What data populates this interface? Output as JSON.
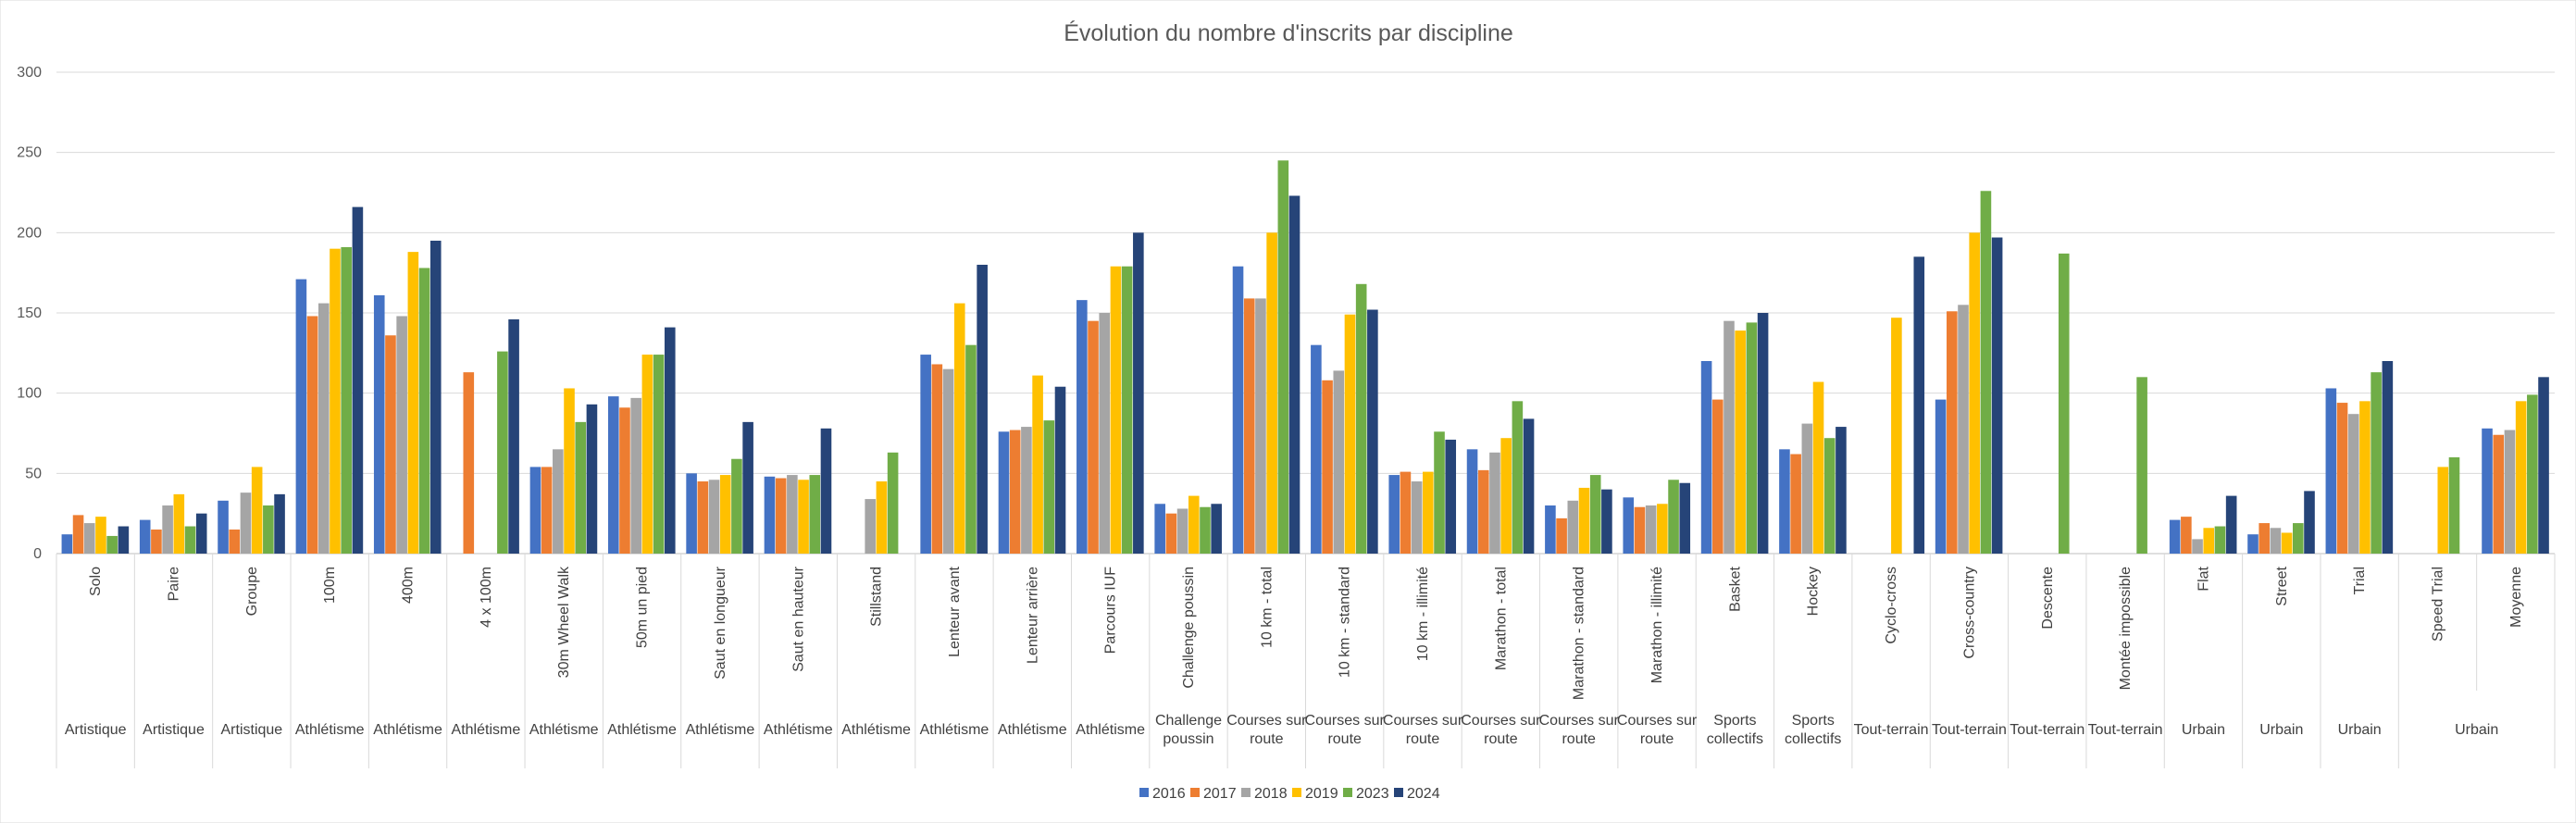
{
  "chart_data": {
    "type": "bar",
    "title": "Évolution du nombre d'inscrits par discipline",
    "xlabel": "",
    "ylabel": "",
    "ylim": [
      0,
      300
    ],
    "yticks": [
      "0",
      "50",
      "100",
      "150",
      "200",
      "250",
      "300"
    ],
    "grid": true,
    "legend_position": "bottom",
    "categories": [
      "Solo",
      "Paire",
      "Groupe",
      "100m",
      "400m",
      "4 x 100m",
      "30m Wheel Walk",
      "50m un pied",
      "Saut en longueur",
      "Saut en hauteur",
      "Stillstand",
      "Lenteur avant",
      "Lenteur arrière",
      "Parcours IUF",
      "Challenge poussin",
      "10 km - total",
      "10 km - standard",
      "10 km - illimité",
      "Marathon - total",
      "Marathon - standard",
      "Marathon - illimité",
      "Basket",
      "Hockey",
      "Cyclo-cross",
      "Cross-country",
      "Descente",
      "Montée impossible",
      "Flat",
      "Street",
      "Trial",
      "Speed Trial",
      "Moyenne"
    ],
    "groups": [
      {
        "label": "Artistique",
        "span": 1
      },
      {
        "label": "Artistique",
        "span": 1
      },
      {
        "label": "Artistique",
        "span": 1
      },
      {
        "label": "Athlétisme",
        "span": 1
      },
      {
        "label": "Athlétisme",
        "span": 1
      },
      {
        "label": "Athlétisme",
        "span": 1
      },
      {
        "label": "Athlétisme",
        "span": 1
      },
      {
        "label": "Athlétisme",
        "span": 1
      },
      {
        "label": "Athlétisme",
        "span": 1
      },
      {
        "label": "Athlétisme",
        "span": 1
      },
      {
        "label": "Athlétisme",
        "span": 1
      },
      {
        "label": "Athlétisme",
        "span": 1
      },
      {
        "label": "Athlétisme",
        "span": 1
      },
      {
        "label": "Athlétisme",
        "span": 1
      },
      {
        "label": "Challenge poussin",
        "span": 1
      },
      {
        "label": "Courses sur route",
        "span": 1
      },
      {
        "label": "Courses sur route",
        "span": 1
      },
      {
        "label": "Courses sur route",
        "span": 1
      },
      {
        "label": "Courses sur route",
        "span": 1
      },
      {
        "label": "Courses sur route",
        "span": 1
      },
      {
        "label": "Courses sur route",
        "span": 1
      },
      {
        "label": "Sports collectifs",
        "span": 1
      },
      {
        "label": "Sports collectifs",
        "span": 1
      },
      {
        "label": "Tout-terrain",
        "span": 1
      },
      {
        "label": "Tout-terrain",
        "span": 1
      },
      {
        "label": "Tout-terrain",
        "span": 1
      },
      {
        "label": "Tout-terrain",
        "span": 1
      },
      {
        "label": "Urbain",
        "span": 1
      },
      {
        "label": "Urbain",
        "span": 1
      },
      {
        "label": "Urbain",
        "span": 1
      },
      {
        "label": "Urbain",
        "span": 2
      }
    ],
    "series": [
      {
        "name": "2016",
        "color": "#4472c4",
        "values": [
          12,
          21,
          33,
          171,
          161,
          null,
          54,
          98,
          50,
          48,
          null,
          124,
          76,
          158,
          31,
          179,
          130,
          49,
          65,
          30,
          35,
          120,
          65,
          null,
          96,
          null,
          null,
          21,
          12,
          103,
          null,
          78
        ]
      },
      {
        "name": "2017",
        "color": "#ed7d31",
        "values": [
          24,
          15,
          15,
          148,
          136,
          113,
          54,
          91,
          45,
          47,
          null,
          118,
          77,
          145,
          25,
          159,
          108,
          51,
          52,
          22,
          29,
          96,
          62,
          null,
          151,
          null,
          null,
          23,
          19,
          94,
          null,
          74
        ]
      },
      {
        "name": "2018",
        "color": "#a5a5a5",
        "values": [
          19,
          30,
          38,
          156,
          148,
          null,
          65,
          97,
          46,
          49,
          34,
          115,
          79,
          150,
          28,
          159,
          114,
          45,
          63,
          33,
          30,
          145,
          81,
          null,
          155,
          null,
          null,
          9,
          16,
          87,
          null,
          77
        ]
      },
      {
        "name": "2019",
        "color": "#ffc000",
        "values": [
          23,
          37,
          54,
          190,
          188,
          null,
          103,
          124,
          49,
          46,
          45,
          156,
          111,
          179,
          36,
          200,
          149,
          51,
          72,
          41,
          31,
          139,
          107,
          147,
          200,
          null,
          null,
          16,
          13,
          95,
          54,
          95
        ]
      },
      {
        "name": "2023",
        "color": "#70ad47",
        "values": [
          11,
          17,
          30,
          191,
          178,
          126,
          82,
          124,
          59,
          49,
          63,
          130,
          83,
          179,
          29,
          245,
          168,
          76,
          95,
          49,
          46,
          144,
          72,
          null,
          226,
          187,
          110,
          17,
          19,
          113,
          60,
          99
        ]
      },
      {
        "name": "2024",
        "color": "#264478",
        "values": [
          17,
          25,
          37,
          216,
          195,
          146,
          93,
          141,
          82,
          78,
          null,
          180,
          104,
          200,
          31,
          223,
          152,
          71,
          84,
          40,
          44,
          150,
          79,
          185,
          197,
          null,
          null,
          36,
          39,
          120,
          null,
          110
        ]
      }
    ]
  }
}
